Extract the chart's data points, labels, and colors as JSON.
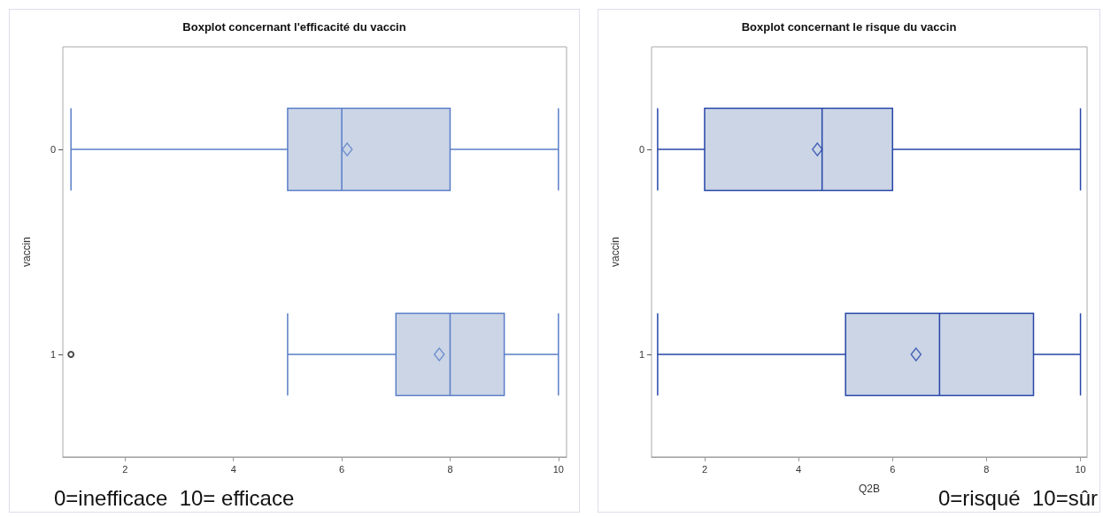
{
  "chart_data": [
    {
      "type": "box",
      "title": "Boxplot concernant l'efficacité du vaccin",
      "ylabel": "vaccin",
      "orientation": "horizontal",
      "categories": [
        "0",
        "1"
      ],
      "xlim": [
        0.85,
        10.15
      ],
      "xticks": [
        2,
        4,
        6,
        8,
        10
      ],
      "series": [
        {
          "color": "#cbd5e6",
          "boxes": [
            {
              "low": 1,
              "q1": 5,
              "median": 6,
              "q3": 8,
              "high": 10,
              "mean": 6.1
            },
            {
              "low": 5,
              "q1": 7,
              "median": 8,
              "q3": 9,
              "high": 10,
              "mean": 7.8,
              "outliers": [
                1
              ]
            }
          ]
        }
      ],
      "annotations": [
        "0=inefficace  10= efficace"
      ]
    },
    {
      "type": "box",
      "title": "Boxplot concernant le risque du vaccin",
      "xlabel": "Q2B",
      "ylabel": "vaccin",
      "orientation": "horizontal",
      "categories": [
        "0",
        "1"
      ],
      "xlim": [
        0.87,
        10.14
      ],
      "xticks": [
        2,
        4,
        6,
        8,
        10
      ],
      "series": [
        {
          "color": "#cbd5e6",
          "boxes": [
            {
              "low": 1,
              "q1": 2,
              "median": 4.5,
              "q3": 6,
              "high": 10,
              "mean": 4.4
            },
            {
              "low": 1,
              "q1": 5,
              "median": 7,
              "q3": 9,
              "high": 10,
              "mean": 6.5
            }
          ]
        }
      ],
      "annotations": [
        "0=risqué  10=sûr"
      ]
    }
  ]
}
